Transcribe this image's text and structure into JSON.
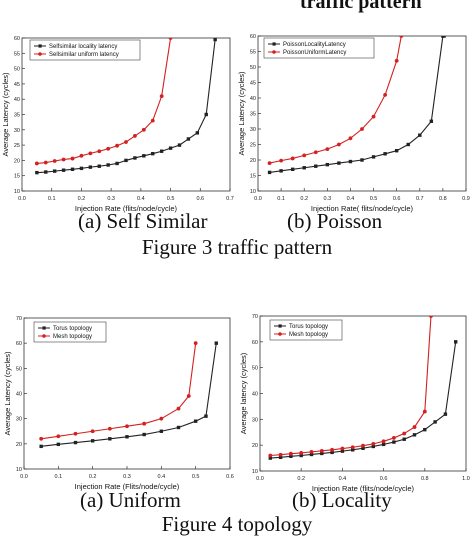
{
  "page": {
    "top_title_fragment": "traffic pattern"
  },
  "figure3": {
    "caption": "Figure 3 traffic pattern",
    "subcaptions": [
      "(a) Self Similar",
      "(b) Poisson"
    ]
  },
  "figure4": {
    "caption": "Figure 4 topology",
    "subcaptions": [
      "(a) Uniform",
      "(b) Locality"
    ]
  },
  "chart_data": [
    {
      "type": "line",
      "title": "",
      "xlabel": "Injection Rate (flits/node/cycle)",
      "ylabel": "Average Latency (cycles)",
      "xlim": [
        0.0,
        0.7
      ],
      "ylim": [
        10,
        60
      ],
      "xticks": [
        "0.0",
        "0.1",
        "0.2",
        "0.3",
        "0.4",
        "0.5",
        "0.6",
        "0.7"
      ],
      "yticks": [
        "10",
        "15",
        "20",
        "25",
        "30",
        "35",
        "40",
        "45",
        "50",
        "55",
        "60"
      ],
      "legend": "top-left",
      "grid": false,
      "series": [
        {
          "name": "Selfsimilar locality latency",
          "color": "#222222",
          "marker": "square",
          "x": [
            0.05,
            0.08,
            0.11,
            0.14,
            0.17,
            0.2,
            0.23,
            0.26,
            0.29,
            0.32,
            0.35,
            0.38,
            0.41,
            0.44,
            0.47,
            0.5,
            0.53,
            0.56,
            0.59,
            0.62,
            0.65
          ],
          "y": [
            16,
            16.2,
            16.5,
            16.8,
            17.1,
            17.4,
            17.8,
            18.1,
            18.5,
            19,
            20,
            20.8,
            21.5,
            22.2,
            23,
            24,
            25,
            27,
            29,
            35,
            59.5
          ]
        },
        {
          "name": "Sellsimilar uniform latency",
          "color": "#d42020",
          "marker": "circle",
          "x": [
            0.05,
            0.08,
            0.11,
            0.14,
            0.17,
            0.2,
            0.23,
            0.26,
            0.29,
            0.32,
            0.35,
            0.38,
            0.41,
            0.44,
            0.47,
            0.5
          ],
          "y": [
            19,
            19.3,
            19.8,
            20.3,
            20.6,
            21.5,
            22.3,
            23,
            23.8,
            24.8,
            26,
            28,
            30,
            33,
            41,
            60
          ]
        }
      ]
    },
    {
      "type": "line",
      "title": "",
      "xlabel": "Injection Rate( flits/node/cycle)",
      "ylabel": "Average Latency (cycles)",
      "xlim": [
        0.0,
        0.9
      ],
      "ylim": [
        10,
        60
      ],
      "xticks": [
        "0.0",
        "0.1",
        "0.2",
        "0.3",
        "0.4",
        "0.5",
        "0.6",
        "0.7",
        "0.8",
        "0.9"
      ],
      "yticks": [
        "10",
        "15",
        "20",
        "25",
        "30",
        "35",
        "40",
        "45",
        "50",
        "55",
        "60"
      ],
      "legend": "top-left",
      "grid": false,
      "series": [
        {
          "name": "PoissonLocalityLatency",
          "color": "#222222",
          "marker": "square",
          "x": [
            0.05,
            0.1,
            0.15,
            0.2,
            0.25,
            0.3,
            0.35,
            0.4,
            0.45,
            0.5,
            0.55,
            0.6,
            0.65,
            0.7,
            0.75,
            0.8,
            0.805
          ],
          "y": [
            16,
            16.5,
            17,
            17.5,
            18,
            18.5,
            19,
            19.5,
            20,
            21,
            22,
            23,
            25,
            28,
            32.5,
            60,
            60
          ]
        },
        {
          "name": "PoissonUniformLatency",
          "color": "#d42020",
          "marker": "circle",
          "x": [
            0.05,
            0.1,
            0.15,
            0.2,
            0.25,
            0.3,
            0.35,
            0.4,
            0.45,
            0.5,
            0.55,
            0.6,
            0.62
          ],
          "y": [
            19,
            19.8,
            20.5,
            21.5,
            22.5,
            23.5,
            25,
            27,
            30,
            34,
            41,
            52,
            60
          ]
        }
      ]
    },
    {
      "type": "line",
      "title": "",
      "xlabel": "Injection Rate (Flits/node/cycle)",
      "ylabel": "Average Latency (cycles)",
      "xlim": [
        0.0,
        0.6
      ],
      "ylim": [
        10,
        70
      ],
      "xticks": [
        "0.0",
        "0.1",
        "0.2",
        "0.3",
        "0.4",
        "0.5",
        "0.6"
      ],
      "yticks": [
        "10",
        "20",
        "30",
        "40",
        "50",
        "60",
        "70"
      ],
      "legend": "top-left",
      "grid": false,
      "series": [
        {
          "name": "Torus topology",
          "color": "#222222",
          "marker": "square",
          "x": [
            0.05,
            0.1,
            0.15,
            0.2,
            0.25,
            0.3,
            0.35,
            0.4,
            0.45,
            0.5,
            0.53,
            0.56
          ],
          "y": [
            19,
            19.8,
            20.5,
            21.2,
            22,
            22.8,
            23.7,
            25,
            26.5,
            29,
            31,
            60
          ]
        },
        {
          "name": "Mesh topology",
          "color": "#d42020",
          "marker": "circle",
          "x": [
            0.05,
            0.1,
            0.15,
            0.2,
            0.25,
            0.3,
            0.35,
            0.4,
            0.45,
            0.48,
            0.5
          ],
          "y": [
            22,
            23,
            24,
            25,
            26,
            27,
            28,
            30,
            34,
            39,
            60
          ]
        }
      ]
    },
    {
      "type": "line",
      "title": "",
      "xlabel": "Injection Rate (flits/node/cycle)",
      "ylabel": "Average latency (cycles)",
      "xlim": [
        0.0,
        1.0
      ],
      "ylim": [
        10,
        70
      ],
      "xticks": [
        "0.0",
        "0.2",
        "0.4",
        "0.6",
        "0.8",
        "1.0"
      ],
      "yticks": [
        "10",
        "20",
        "30",
        "40",
        "50",
        "60",
        "70"
      ],
      "legend": "top-left",
      "grid": false,
      "series": [
        {
          "name": "Torus topology",
          "color": "#222222",
          "marker": "square",
          "x": [
            0.05,
            0.1,
            0.15,
            0.2,
            0.25,
            0.3,
            0.35,
            0.4,
            0.45,
            0.5,
            0.55,
            0.6,
            0.65,
            0.7,
            0.75,
            0.8,
            0.85,
            0.9,
            0.95
          ],
          "y": [
            15,
            15.3,
            15.7,
            16,
            16.4,
            16.8,
            17.2,
            17.7,
            18.2,
            18.8,
            19.5,
            20.3,
            21.2,
            22.3,
            24,
            26,
            29,
            32,
            60
          ]
        },
        {
          "name": "Mesh topology",
          "color": "#d42020",
          "marker": "circle",
          "x": [
            0.05,
            0.1,
            0.15,
            0.2,
            0.25,
            0.3,
            0.35,
            0.4,
            0.45,
            0.5,
            0.55,
            0.6,
            0.65,
            0.7,
            0.75,
            0.8,
            0.83
          ],
          "y": [
            16,
            16.3,
            16.7,
            17,
            17.4,
            17.8,
            18.2,
            18.7,
            19.2,
            19.8,
            20.5,
            21.5,
            22.8,
            24.5,
            27,
            33,
            70
          ]
        }
      ]
    }
  ]
}
